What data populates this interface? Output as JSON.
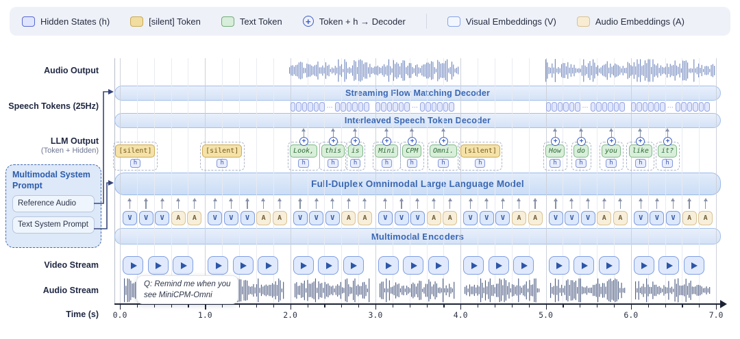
{
  "legend": {
    "items": [
      {
        "name": "hidden-states",
        "swatch": "hidden",
        "label": "Hidden States (h)"
      },
      {
        "name": "silent-token",
        "swatch": "silent",
        "label": "[silent] Token"
      },
      {
        "name": "text-token",
        "swatch": "text",
        "label": "Text Token"
      },
      {
        "name": "token-h-decoder",
        "swatch": "oplus",
        "label": "Token + h → Decoder"
      },
      {
        "name": "visual-embeddings",
        "swatch": "visual",
        "label": "Visual Embeddings (V)"
      },
      {
        "name": "audio-embeddings",
        "swatch": "audio",
        "label": "Audio Embeddings (A)"
      }
    ],
    "divider_before_index": 4
  },
  "row_labels": {
    "audio_output": "Audio Output",
    "speech_tokens": "Speech Tokens (25Hz)",
    "llm_output": "LLM Output",
    "llm_output_sub": "(Token + Hidden)",
    "video_stream": "Video Stream",
    "audio_stream": "Audio Stream",
    "time": "Time (s)"
  },
  "bars": {
    "flow_matching_decoder": "Streaming Flow Matching Decoder",
    "speech_token_decoder": "Interleaved Speech Token Decoder",
    "llm": "Full-Duplex Omnimodal Large Language Model",
    "encoders": "Multimodal Encoders"
  },
  "system_prompt": {
    "title": "Multimodal System Prompt",
    "items": [
      "Reference Audio",
      "Text System Prompt"
    ]
  },
  "query_tooltip": {
    "line1": "Q: Remind me when you",
    "line2": "see MiniCPM-Omni"
  },
  "labels": {
    "h": "h",
    "ellipsis": "⋯",
    "oplus": "+"
  },
  "timeline": {
    "start": 0.0,
    "end": 7.0,
    "major_step": 1.0,
    "minor_step": 0.2,
    "tick_labels": [
      "0.0",
      "1.0",
      "2.0",
      "3.0",
      "4.0",
      "5.0",
      "6.0",
      "7.0"
    ]
  },
  "llm_tokens": [
    {
      "text": "[silent]",
      "type": "silent",
      "t": -0.05
    },
    {
      "text": "[silent]",
      "type": "silent",
      "t": 0.97
    },
    {
      "text": "Look,",
      "type": "text",
      "t": 2.0
    },
    {
      "text": "this",
      "type": "text",
      "t": 2.37
    },
    {
      "text": "is",
      "type": "text",
      "t": 2.68
    },
    {
      "text": "Mini",
      "type": "text",
      "t": 3.0
    },
    {
      "text": "CPM",
      "type": "text",
      "t": 3.32
    },
    {
      "text": "Omni.",
      "type": "text",
      "t": 3.64
    },
    {
      "text": "[silent]",
      "type": "silent",
      "t": 4.0
    },
    {
      "text": "How",
      "type": "text",
      "t": 5.0
    },
    {
      "text": "do",
      "type": "text",
      "t": 5.33
    },
    {
      "text": "you",
      "type": "text",
      "t": 5.66
    },
    {
      "text": "like",
      "type": "text",
      "t": 5.98
    },
    {
      "text": "it?",
      "type": "text",
      "t": 6.32
    }
  ],
  "speech_token_groups": {
    "starts": [
      2.0,
      3.0,
      5.0,
      6.0
    ],
    "boxes_per_side": 6
  },
  "embedding_groups": {
    "seconds": [
      0,
      1,
      2,
      3,
      4,
      5,
      6
    ],
    "pattern": [
      "V",
      "V",
      "V",
      "A",
      "A"
    ]
  },
  "video_stream": {
    "frames_per_second": 3,
    "seconds": [
      0,
      1,
      2,
      3,
      4,
      5,
      6
    ]
  },
  "audio_output_segments": [
    [
      1.98,
      3.98
    ],
    [
      4.99,
      6.99
    ]
  ],
  "audio_stream_segments": [
    [
      0.04,
      0.93
    ],
    [
      1.04,
      1.93
    ],
    [
      2.04,
      2.93
    ],
    [
      3.04,
      3.93
    ],
    [
      4.04,
      4.93
    ],
    [
      5.04,
      5.93
    ],
    [
      6.04,
      6.93
    ]
  ],
  "colors": {
    "legend_bg": "#eef1f8",
    "bar_text": "#3a67b2",
    "bar_border": "#a3bfe9",
    "silent_fill": "#f4e2a9",
    "silent_border": "#cda94f",
    "text_fill": "#d9efda",
    "text_border": "#7db785",
    "hidden_fill": "#e8eefd",
    "hidden_border": "#8396d8",
    "visual_fill": "#dce8fb",
    "visual_border": "#7e9bde",
    "audio_fill": "#f8efda",
    "audio_border": "#d9c294",
    "audio_output_wave": "#7288bf",
    "audio_stream_wave": "#4e5d83",
    "axis": "#1c2336",
    "connector": "#36457a",
    "prompt_title": "#2b5cab"
  }
}
